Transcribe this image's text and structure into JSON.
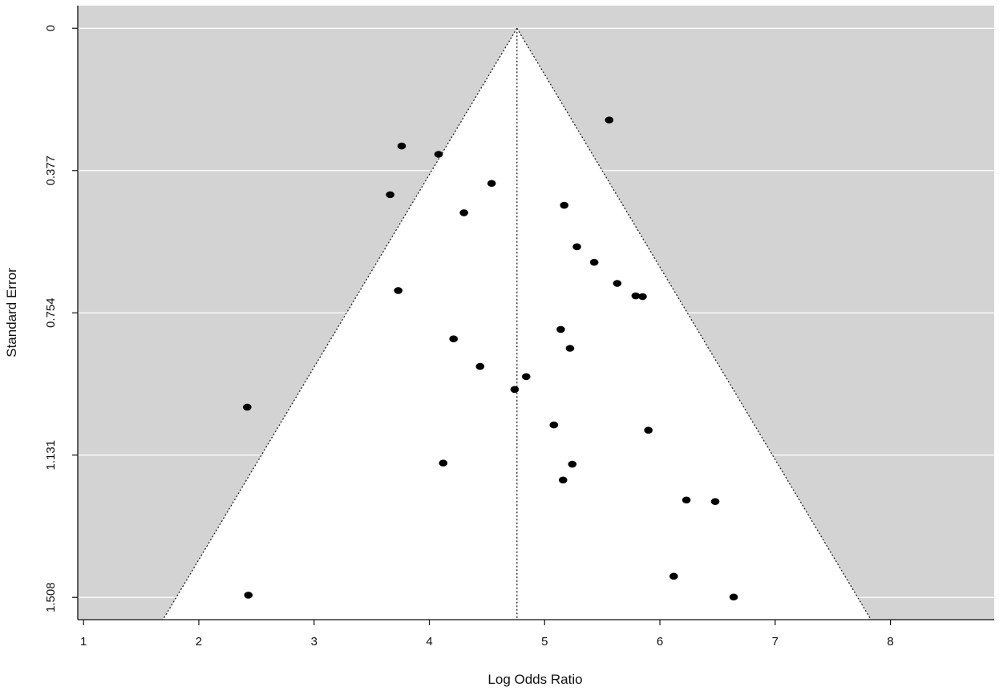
{
  "chart_data": {
    "type": "scatter",
    "subtype": "funnel",
    "xlabel": "Log Odds Ratio",
    "ylabel": "Standard Error",
    "xlim": [
      0.95,
      8.9
    ],
    "ylim": [
      1.567,
      -0.06
    ],
    "y_axis_inverted": true,
    "x_ticks": [
      1,
      2,
      3,
      4,
      5,
      6,
      7,
      8
    ],
    "y_ticks": [
      0,
      0.377,
      0.754,
      1.131,
      1.508
    ],
    "y_tick_labels": [
      "0",
      "0.377",
      "0.754",
      "1.131",
      "1.508"
    ],
    "summary_estimate": 4.76,
    "funnel_z": 1.96,
    "grid": "horizontal",
    "colors": {
      "background": "#d3d3d3",
      "funnel_fill": "#ffffff",
      "points": "#000000",
      "gridlines": "#ffffff"
    },
    "points": [
      {
        "x": 5.56,
        "y": 0.243
      },
      {
        "x": 3.76,
        "y": 0.312
      },
      {
        "x": 4.08,
        "y": 0.334
      },
      {
        "x": 4.54,
        "y": 0.411
      },
      {
        "x": 3.66,
        "y": 0.441
      },
      {
        "x": 5.17,
        "y": 0.469
      },
      {
        "x": 4.3,
        "y": 0.489
      },
      {
        "x": 5.28,
        "y": 0.579
      },
      {
        "x": 5.43,
        "y": 0.62
      },
      {
        "x": 5.63,
        "y": 0.676
      },
      {
        "x": 3.73,
        "y": 0.695
      },
      {
        "x": 5.79,
        "y": 0.709
      },
      {
        "x": 5.85,
        "y": 0.711
      },
      {
        "x": 5.14,
        "y": 0.798
      },
      {
        "x": 4.21,
        "y": 0.823
      },
      {
        "x": 5.22,
        "y": 0.848
      },
      {
        "x": 4.44,
        "y": 0.896
      },
      {
        "x": 4.84,
        "y": 0.923
      },
      {
        "x": 4.74,
        "y": 0.957
      },
      {
        "x": 2.42,
        "y": 1.004
      },
      {
        "x": 5.08,
        "y": 1.051
      },
      {
        "x": 5.9,
        "y": 1.065
      },
      {
        "x": 4.12,
        "y": 1.152
      },
      {
        "x": 5.24,
        "y": 1.155
      },
      {
        "x": 5.16,
        "y": 1.197
      },
      {
        "x": 6.23,
        "y": 1.25
      },
      {
        "x": 6.48,
        "y": 1.254
      },
      {
        "x": 6.12,
        "y": 1.452
      },
      {
        "x": 2.43,
        "y": 1.502
      },
      {
        "x": 6.64,
        "y": 1.507
      }
    ]
  }
}
